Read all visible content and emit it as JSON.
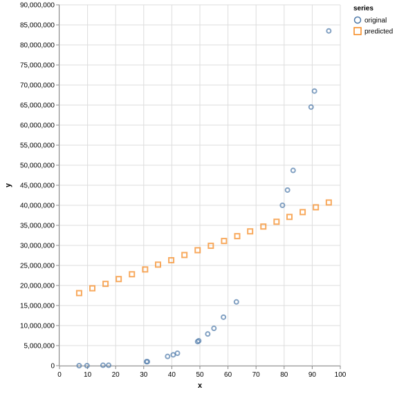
{
  "chart_data": {
    "type": "scatter",
    "xlabel": "x",
    "ylabel": "y",
    "xlim": [
      0,
      100
    ],
    "ylim": [
      0,
      90000000
    ],
    "x_ticks": [
      0,
      10,
      20,
      30,
      40,
      50,
      60,
      70,
      80,
      90,
      100
    ],
    "x_tick_labels": [
      "0",
      "10",
      "20",
      "30",
      "40",
      "50",
      "60",
      "70",
      "80",
      "90",
      "100"
    ],
    "y_ticks": [
      0,
      5000000,
      10000000,
      15000000,
      20000000,
      25000000,
      30000000,
      35000000,
      40000000,
      45000000,
      50000000,
      55000000,
      60000000,
      65000000,
      70000000,
      75000000,
      80000000,
      85000000,
      90000000
    ],
    "y_tick_labels": [
      "0",
      "5,000,000",
      "10,000,000",
      "15,000,000",
      "20,000,000",
      "25,000,000",
      "30,000,000",
      "35,000,000",
      "40,000,000",
      "45,000,000",
      "50,000,000",
      "55,000,000",
      "60,000,000",
      "65,000,000",
      "70,000,000",
      "75,000,000",
      "80,000,000",
      "85,000,000",
      "90,000,000"
    ],
    "grid": true,
    "legend": {
      "title": "series",
      "placement": "top-right",
      "entries": [
        {
          "label": "original",
          "shape": "circle",
          "color": "#4c78a8"
        },
        {
          "label": "predicted",
          "shape": "square",
          "color": "#f58518"
        }
      ]
    },
    "series": [
      {
        "name": "original",
        "shape": "circle",
        "color": "#4c78a8",
        "points": [
          [
            7,
            0
          ],
          [
            9.8,
            0
          ],
          [
            15.5,
            100000
          ],
          [
            17.5,
            100000
          ],
          [
            31,
            1000000
          ],
          [
            31.3,
            1000000
          ],
          [
            38.5,
            2300000
          ],
          [
            40.5,
            2700000
          ],
          [
            42,
            3100000
          ],
          [
            49.2,
            6000000
          ],
          [
            49.6,
            6200000
          ],
          [
            52.8,
            7900000
          ],
          [
            55,
            9300000
          ],
          [
            58.4,
            12100000
          ],
          [
            63,
            15900000
          ],
          [
            79.4,
            40000000
          ],
          [
            81.2,
            43800000
          ],
          [
            83.2,
            48700000
          ],
          [
            89.6,
            64500000
          ],
          [
            90.8,
            68500000
          ],
          [
            95.9,
            83500000
          ]
        ]
      },
      {
        "name": "predicted",
        "shape": "square",
        "color": "#f58518",
        "points": [
          [
            7,
            18100000
          ],
          [
            11.7,
            19300000
          ],
          [
            16.4,
            20400000
          ],
          [
            21.1,
            21600000
          ],
          [
            25.8,
            22800000
          ],
          [
            30.5,
            24000000
          ],
          [
            35.1,
            25200000
          ],
          [
            39.8,
            26300000
          ],
          [
            44.5,
            27600000
          ],
          [
            49.2,
            28800000
          ],
          [
            53.9,
            29900000
          ],
          [
            58.6,
            31100000
          ],
          [
            63.3,
            32300000
          ],
          [
            67.9,
            33500000
          ],
          [
            72.6,
            34700000
          ],
          [
            77.3,
            35900000
          ],
          [
            81.9,
            37100000
          ],
          [
            86.6,
            38300000
          ],
          [
            91.3,
            39500000
          ],
          [
            95.9,
            40700000
          ]
        ]
      }
    ]
  }
}
